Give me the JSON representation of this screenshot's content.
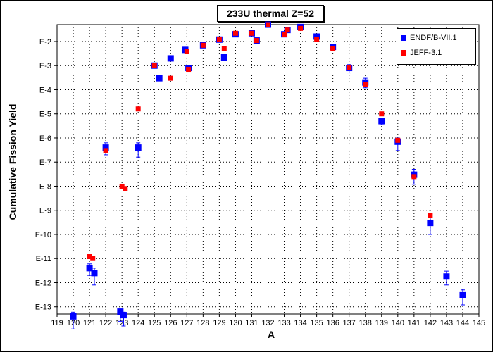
{
  "chart_data": {
    "type": "scatter",
    "title": "233U thermal Z=52",
    "xlabel": "A",
    "ylabel": "Cumulative Fission Yield",
    "x_ticks": [
      119,
      120,
      121,
      122,
      123,
      124,
      125,
      126,
      127,
      128,
      129,
      130,
      131,
      132,
      133,
      134,
      135,
      136,
      137,
      138,
      139,
      140,
      141,
      142,
      143,
      144,
      145
    ],
    "xlim": [
      119,
      145
    ],
    "y_scale": "log",
    "ylim_exp": [
      -13.3,
      -1.3
    ],
    "y_ticks": [
      {
        "exp": -2,
        "label": "E-2"
      },
      {
        "exp": -3,
        "label": "E-3"
      },
      {
        "exp": -4,
        "label": "E-4"
      },
      {
        "exp": -5,
        "label": "E-5"
      },
      {
        "exp": -6,
        "label": "E-6"
      },
      {
        "exp": -7,
        "label": "E-7"
      },
      {
        "exp": -8,
        "label": "E-8"
      },
      {
        "exp": -9,
        "label": "E-9"
      },
      {
        "exp": -10,
        "label": "E-10"
      },
      {
        "exp": -11,
        "label": "E-11"
      },
      {
        "exp": -12,
        "label": "E-12"
      },
      {
        "exp": -13,
        "label": "E-13"
      }
    ],
    "grid": true,
    "legend_position": "top-right",
    "series": [
      {
        "name": "ENDF/B-VII.1",
        "color": "#0000ff",
        "marker": "square",
        "points": [
          {
            "x": 120,
            "y": 4e-14,
            "err_lo": 1.2e-14,
            "err_hi": 6e-14
          },
          {
            "x": 121,
            "y": 4e-12,
            "err_lo": 2e-12,
            "err_hi": 6e-12
          },
          {
            "x": 121.3,
            "y": 2.5e-12,
            "err_lo": 8e-13,
            "err_hi": 4e-12
          },
          {
            "x": 122,
            "y": 4e-07,
            "err_lo": 2e-07,
            "err_hi": 6.3e-07
          },
          {
            "x": 122.9,
            "y": 6.3e-14,
            "err_lo": 2.5e-14,
            "err_hi": 8e-14
          },
          {
            "x": 123.1,
            "y": 4.5e-14,
            "err_lo": 1.6e-14,
            "err_hi": 6e-14
          },
          {
            "x": 124,
            "y": 4e-07,
            "err_lo": 1.6e-07,
            "err_hi": 6.3e-07
          },
          {
            "x": 125,
            "y": 0.001
          },
          {
            "x": 125.3,
            "y": 0.0003
          },
          {
            "x": 126,
            "y": 0.002
          },
          {
            "x": 126.9,
            "y": 0.0045
          },
          {
            "x": 127.1,
            "y": 0.0008
          },
          {
            "x": 128,
            "y": 0.007
          },
          {
            "x": 129,
            "y": 0.012
          },
          {
            "x": 129.3,
            "y": 0.0022
          },
          {
            "x": 130,
            "y": 0.02
          },
          {
            "x": 131,
            "y": 0.022
          },
          {
            "x": 131.3,
            "y": 0.011
          },
          {
            "x": 132,
            "y": 0.05
          },
          {
            "x": 133,
            "y": 0.02
          },
          {
            "x": 133.2,
            "y": 0.03
          },
          {
            "x": 134,
            "y": 0.04
          },
          {
            "x": 135,
            "y": 0.016
          },
          {
            "x": 136,
            "y": 0.006
          },
          {
            "x": 137,
            "y": 0.0008,
            "err_lo": 0.0005,
            "err_hi": 0.0011
          },
          {
            "x": 138,
            "y": 0.0002,
            "err_lo": 0.00012,
            "err_hi": 0.0003
          },
          {
            "x": 139,
            "y": 5e-06,
            "err_lo": 3.5e-06,
            "err_hi": 6.5e-06
          },
          {
            "x": 140,
            "y": 7e-07,
            "err_lo": 3e-07,
            "err_hi": 1e-06
          },
          {
            "x": 141,
            "y": 3e-08,
            "err_lo": 1.2e-08,
            "err_hi": 5e-08
          },
          {
            "x": 142,
            "y": 3e-10,
            "err_lo": 1e-10,
            "err_hi": 5e-10
          },
          {
            "x": 143,
            "y": 1.8e-12,
            "err_lo": 8e-13,
            "err_hi": 3e-12
          },
          {
            "x": 144,
            "y": 3e-13,
            "err_lo": 1.2e-13,
            "err_hi": 5e-13
          }
        ]
      },
      {
        "name": "JEFF-3.1",
        "color": "#ff0000",
        "marker": "square",
        "points": [
          {
            "x": 121,
            "y": 1.2e-11
          },
          {
            "x": 121.2,
            "y": 1e-11
          },
          {
            "x": 122,
            "y": 3e-07
          },
          {
            "x": 123,
            "y": 1e-08
          },
          {
            "x": 123.2,
            "y": 8e-09
          },
          {
            "x": 124,
            "y": 1.6e-05
          },
          {
            "x": 125,
            "y": 0.001
          },
          {
            "x": 126,
            "y": 0.0003
          },
          {
            "x": 127,
            "y": 0.004
          },
          {
            "x": 127.1,
            "y": 0.0007
          },
          {
            "x": 128,
            "y": 0.007
          },
          {
            "x": 129,
            "y": 0.012
          },
          {
            "x": 129.3,
            "y": 0.005
          },
          {
            "x": 130,
            "y": 0.022
          },
          {
            "x": 131,
            "y": 0.022
          },
          {
            "x": 131.3,
            "y": 0.011
          },
          {
            "x": 132,
            "y": 0.05
          },
          {
            "x": 133,
            "y": 0.02
          },
          {
            "x": 133.2,
            "y": 0.03
          },
          {
            "x": 134,
            "y": 0.035
          },
          {
            "x": 135,
            "y": 0.012
          },
          {
            "x": 136,
            "y": 0.005
          },
          {
            "x": 137,
            "y": 0.0008
          },
          {
            "x": 138,
            "y": 0.00016
          },
          {
            "x": 139,
            "y": 1e-05
          },
          {
            "x": 140,
            "y": 8e-07
          },
          {
            "x": 141,
            "y": 2.5e-08
          },
          {
            "x": 142,
            "y": 6e-10
          }
        ]
      }
    ]
  }
}
